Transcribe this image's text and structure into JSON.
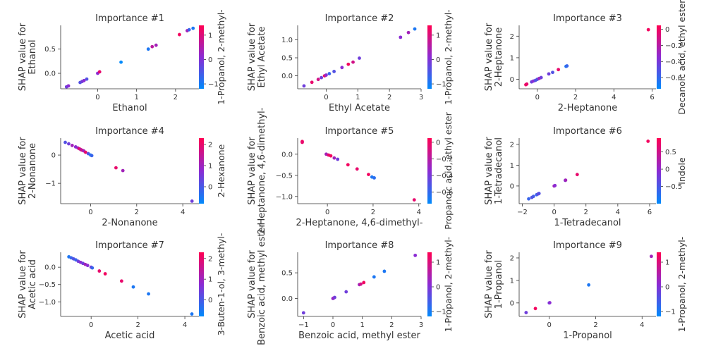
{
  "figure": {
    "cmap_low": "#008afb",
    "cmap_mid": "#8b2bd3",
    "cmap_high": "#ff0052",
    "axis_color": "#333333"
  },
  "chart_data": [
    {
      "type": "scatter",
      "title": "Importance #1",
      "xlabel": "Ethanol",
      "ylabel": [
        "SHAP value for",
        "Ethanol"
      ],
      "xlim": [
        -0.95,
        2.6
      ],
      "ylim": [
        -0.32,
        0.99
      ],
      "xticks": [
        0,
        1,
        2
      ],
      "yticks": [
        0.0,
        0.5
      ],
      "ytick_labels": [
        "0.0",
        "0.5"
      ],
      "colorbar": {
        "label": "1-Propanol, 2-methyl-",
        "ticks": [
          -1,
          0,
          1
        ],
        "range": [
          -1.2,
          1.4
        ]
      },
      "points": [
        {
          "x": -0.8,
          "y": -0.28,
          "c": 0.4
        },
        {
          "x": -0.75,
          "y": -0.26,
          "c": 0.5
        },
        {
          "x": -0.45,
          "y": -0.19,
          "c": 0.3
        },
        {
          "x": -0.4,
          "y": -0.17,
          "c": 0.4
        },
        {
          "x": -0.35,
          "y": -0.15,
          "c": 0.5
        },
        {
          "x": -0.28,
          "y": -0.12,
          "c": 0.3
        },
        {
          "x": 0.0,
          "y": 0.0,
          "c": 0.5
        },
        {
          "x": 0.05,
          "y": 0.03,
          "c": 0.9
        },
        {
          "x": 0.6,
          "y": 0.23,
          "c": 0.0
        },
        {
          "x": 1.3,
          "y": 0.5,
          "c": 0.1
        },
        {
          "x": 1.4,
          "y": 0.55,
          "c": 0.7
        },
        {
          "x": 1.5,
          "y": 0.58,
          "c": 0.6
        },
        {
          "x": 2.1,
          "y": 0.8,
          "c": 0.95
        },
        {
          "x": 2.3,
          "y": 0.88,
          "c": 0.6
        },
        {
          "x": 2.35,
          "y": 0.9,
          "c": 0.2
        },
        {
          "x": 2.45,
          "y": 0.93,
          "c": 0.1
        }
      ]
    },
    {
      "type": "scatter",
      "title": "Importance #2",
      "xlabel": "Ethyl Acetate",
      "ylabel": [
        "SHAP value for",
        "Ethyl Acetate"
      ],
      "xlim": [
        -0.9,
        3.0
      ],
      "ylim": [
        -0.36,
        1.4
      ],
      "xticks": [
        0,
        1,
        2,
        3
      ],
      "yticks": [
        0.0,
        0.5,
        1.0
      ],
      "ytick_labels": [
        "0.0",
        "0.5",
        "1.0"
      ],
      "colorbar": {
        "label": "1-Propanol, 2-methyl-",
        "ticks": [
          -1,
          0,
          1
        ],
        "range": [
          -1.2,
          1.4
        ]
      },
      "points": [
        {
          "x": -0.7,
          "y": -0.28,
          "c": 0.4
        },
        {
          "x": -0.45,
          "y": -0.18,
          "c": 0.9
        },
        {
          "x": -0.25,
          "y": -0.1,
          "c": 0.8
        },
        {
          "x": -0.15,
          "y": -0.05,
          "c": 0.4
        },
        {
          "x": -0.05,
          "y": 0.0,
          "c": 0.9
        },
        {
          "x": 0.0,
          "y": 0.02,
          "c": 0.5
        },
        {
          "x": 0.1,
          "y": 0.06,
          "c": 0.2
        },
        {
          "x": 0.25,
          "y": 0.12,
          "c": 0.3
        },
        {
          "x": 0.5,
          "y": 0.23,
          "c": 0.5
        },
        {
          "x": 0.7,
          "y": 0.32,
          "c": 0.95
        },
        {
          "x": 0.85,
          "y": 0.38,
          "c": 0.8
        },
        {
          "x": 1.05,
          "y": 0.49,
          "c": 0.4
        },
        {
          "x": 2.35,
          "y": 1.07,
          "c": 0.5
        },
        {
          "x": 2.6,
          "y": 1.2,
          "c": 0.6
        },
        {
          "x": 2.8,
          "y": 1.3,
          "c": 0.1
        }
      ]
    },
    {
      "type": "scatter",
      "title": "Importance #3",
      "xlabel": "2-Heptanone",
      "ylabel": [
        "SHAP value for",
        "2-Heptanone"
      ],
      "xlim": [
        -0.95,
        6.2
      ],
      "ylim": [
        -0.44,
        2.5
      ],
      "xticks": [
        0,
        2,
        4,
        6
      ],
      "yticks": [
        0,
        1,
        2
      ],
      "ytick_labels": [
        "0",
        "1",
        "2"
      ],
      "colorbar": {
        "label": "Decanoic acid, ethyl ester",
        "ticks": [
          -0.6,
          -0.4,
          -0.2,
          0.0
        ],
        "range": [
          -0.74,
          0.05
        ]
      },
      "points": [
        {
          "x": -0.6,
          "y": -0.25,
          "c": 0.95
        },
        {
          "x": -0.55,
          "y": -0.22,
          "c": 0.9
        },
        {
          "x": -0.3,
          "y": -0.12,
          "c": 0.4
        },
        {
          "x": -0.2,
          "y": -0.08,
          "c": 0.5
        },
        {
          "x": -0.1,
          "y": -0.05,
          "c": 0.3
        },
        {
          "x": 0.0,
          "y": 0.0,
          "c": 0.3
        },
        {
          "x": 0.1,
          "y": 0.04,
          "c": 0.6
        },
        {
          "x": 0.2,
          "y": 0.08,
          "c": 0.4
        },
        {
          "x": 0.6,
          "y": 0.25,
          "c": 0.4
        },
        {
          "x": 0.8,
          "y": 0.32,
          "c": 0.3
        },
        {
          "x": 1.1,
          "y": 0.45,
          "c": 0.9
        },
        {
          "x": 1.5,
          "y": 0.6,
          "c": 0.1
        },
        {
          "x": 1.55,
          "y": 0.62,
          "c": 0.2
        },
        {
          "x": 5.8,
          "y": 2.3,
          "c": 0.95
        }
      ]
    },
    {
      "type": "scatter",
      "title": "Importance #4",
      "xlabel": "2-Nonanone",
      "ylabel": [
        "SHAP value for",
        "2-Nonanone"
      ],
      "xlim": [
        -1.3,
        4.7
      ],
      "ylim": [
        -1.72,
        0.6
      ],
      "xticks": [
        0,
        2,
        4
      ],
      "yticks": [
        0,
        -1
      ],
      "ytick_labels": [
        "0",
        "−1"
      ],
      "colorbar": {
        "label": "2-Hexanone",
        "ticks": [
          0,
          1,
          2
        ],
        "range": [
          -0.8,
          2.3
        ]
      },
      "points": [
        {
          "x": -1.1,
          "y": 0.45,
          "c": 0.3
        },
        {
          "x": -0.95,
          "y": 0.4,
          "c": 0.4
        },
        {
          "x": -0.8,
          "y": 0.34,
          "c": 0.6
        },
        {
          "x": -0.65,
          "y": 0.29,
          "c": 0.5
        },
        {
          "x": -0.55,
          "y": 0.25,
          "c": 0.6
        },
        {
          "x": -0.48,
          "y": 0.22,
          "c": 0.9
        },
        {
          "x": -0.42,
          "y": 0.19,
          "c": 0.7
        },
        {
          "x": -0.36,
          "y": 0.17,
          "c": 0.8
        },
        {
          "x": -0.3,
          "y": 0.15,
          "c": 0.6
        },
        {
          "x": -0.22,
          "y": 0.1,
          "c": 0.9
        },
        {
          "x": -0.1,
          "y": 0.05,
          "c": 0.3
        },
        {
          "x": 0.0,
          "y": 0.0,
          "c": 0.1
        },
        {
          "x": 0.05,
          "y": -0.02,
          "c": 0.2
        },
        {
          "x": 1.1,
          "y": -0.45,
          "c": 0.9
        },
        {
          "x": 1.4,
          "y": -0.55,
          "c": 0.6
        },
        {
          "x": 4.4,
          "y": -1.63,
          "c": 0.4
        }
      ]
    },
    {
      "type": "scatter",
      "title": "Importance #5",
      "xlabel": "2-Heptanone, 4,6-dimethyl-",
      "ylabel": [
        "SHAP value for",
        "2-Heptanone, 4,6-dimethyl-"
      ],
      "xlim": [
        -1.3,
        4.1
      ],
      "ylim": [
        -1.17,
        0.38
      ],
      "xticks": [
        0,
        2,
        4
      ],
      "yticks": [
        0.0,
        -0.5,
        -1.0
      ],
      "ytick_labels": [
        "0.0",
        "−0.5",
        "−1.0"
      ],
      "colorbar": {
        "label": "Propanoic acid, ethyl ester",
        "ticks": [
          -0.6,
          -0.4,
          -0.2,
          0.0
        ],
        "range": [
          -0.74,
          0.05
        ]
      },
      "points": [
        {
          "x": -1.1,
          "y": 0.3,
          "c": 0.95
        },
        {
          "x": -1.1,
          "y": 0.28,
          "c": 0.9
        },
        {
          "x": -0.05,
          "y": 0.0,
          "c": 0.6
        },
        {
          "x": 0.05,
          "y": -0.02,
          "c": 0.9
        },
        {
          "x": 0.15,
          "y": -0.04,
          "c": 0.95
        },
        {
          "x": 0.3,
          "y": -0.09,
          "c": 0.6
        },
        {
          "x": 0.45,
          "y": -0.12,
          "c": 0.4
        },
        {
          "x": 0.9,
          "y": -0.25,
          "c": 0.95
        },
        {
          "x": 1.3,
          "y": -0.35,
          "c": 0.9
        },
        {
          "x": 1.8,
          "y": -0.48,
          "c": 0.95
        },
        {
          "x": 1.95,
          "y": -0.54,
          "c": 0.1
        },
        {
          "x": 2.05,
          "y": -0.56,
          "c": 0.15
        },
        {
          "x": 3.8,
          "y": -1.08,
          "c": 0.9
        }
      ]
    },
    {
      "type": "scatter",
      "title": "Importance #6",
      "xlabel": "1-Tetradecanol",
      "ylabel": [
        "SHAP value for",
        "1-Tetradecanol"
      ],
      "xlim": [
        -2.2,
        6.4
      ],
      "ylim": [
        -0.85,
        2.3
      ],
      "xticks": [
        -2,
        0,
        2,
        4,
        6
      ],
      "yticks": [
        0,
        1,
        2
      ],
      "ytick_labels": [
        "0",
        "1",
        "2"
      ],
      "colorbar": {
        "label": "Indole",
        "ticks": [
          -0.5,
          0.0,
          0.5
        ],
        "range": [
          -1.0,
          0.9
        ]
      },
      "points": [
        {
          "x": -1.6,
          "y": -0.62,
          "c": 0.2
        },
        {
          "x": -1.4,
          "y": -0.55,
          "c": 0.3
        },
        {
          "x": -1.3,
          "y": -0.5,
          "c": 0.25
        },
        {
          "x": -1.1,
          "y": -0.42,
          "c": 0.2
        },
        {
          "x": -1.0,
          "y": -0.38,
          "c": 0.4
        },
        {
          "x": -0.95,
          "y": -0.36,
          "c": 0.3
        },
        {
          "x": 0.0,
          "y": 0.0,
          "c": 0.6
        },
        {
          "x": 0.05,
          "y": 0.02,
          "c": 0.5
        },
        {
          "x": 0.7,
          "y": 0.27,
          "c": 0.4
        },
        {
          "x": 0.72,
          "y": 0.28,
          "c": 0.6
        },
        {
          "x": 1.45,
          "y": 0.55,
          "c": 0.9
        },
        {
          "x": 5.9,
          "y": 2.15,
          "c": 0.95
        }
      ]
    },
    {
      "type": "scatter",
      "title": "Importance #7",
      "xlabel": "Acetic acid",
      "ylabel": [
        "SHAP value for",
        "Acetic acid"
      ],
      "xlim": [
        -1.3,
        4.6
      ],
      "ylim": [
        -1.42,
        0.43
      ],
      "xticks": [
        0,
        2,
        4
      ],
      "yticks": [
        0.0,
        -0.5,
        -1.0
      ],
      "ytick_labels": [
        "0.0",
        "−0.5",
        "−1.0"
      ],
      "colorbar": {
        "label": "3-Buten-1-ol, 3-methyl-",
        "ticks": [
          0,
          1,
          2
        ],
        "range": [
          -0.8,
          2.3
        ]
      },
      "points": [
        {
          "x": -0.95,
          "y": 0.3,
          "c": 0.1
        },
        {
          "x": -0.85,
          "y": 0.27,
          "c": 0.2
        },
        {
          "x": -0.75,
          "y": 0.24,
          "c": 0.3
        },
        {
          "x": -0.65,
          "y": 0.21,
          "c": 0.2
        },
        {
          "x": -0.55,
          "y": 0.17,
          "c": 0.4
        },
        {
          "x": -0.45,
          "y": 0.14,
          "c": 0.5
        },
        {
          "x": -0.35,
          "y": 0.11,
          "c": 0.4
        },
        {
          "x": -0.25,
          "y": 0.08,
          "c": 0.6
        },
        {
          "x": -0.15,
          "y": 0.05,
          "c": 0.5
        },
        {
          "x": 0.0,
          "y": 0.0,
          "c": 0.4
        },
        {
          "x": 0.05,
          "y": -0.02,
          "c": 0.2
        },
        {
          "x": 0.35,
          "y": -0.11,
          "c": 0.9
        },
        {
          "x": 0.6,
          "y": -0.19,
          "c": 0.95
        },
        {
          "x": 1.3,
          "y": -0.4,
          "c": 0.9
        },
        {
          "x": 1.8,
          "y": -0.57,
          "c": 0.1
        },
        {
          "x": 2.45,
          "y": -0.77,
          "c": 0.1
        },
        {
          "x": 4.3,
          "y": -1.35,
          "c": 0.1
        }
      ]
    },
    {
      "type": "scatter",
      "title": "Importance #8",
      "xlabel": "Benzoic acid, methyl ester",
      "ylabel": [
        "SHAP value for",
        "Benzoic acid, methyl ester"
      ],
      "xlim": [
        -1.2,
        3.0
      ],
      "ylim": [
        -0.35,
        0.9
      ],
      "xticks": [
        -1,
        0,
        1,
        2,
        3
      ],
      "yticks": [
        0.0,
        0.5
      ],
      "ytick_labels": [
        "0.0",
        "0.5"
      ],
      "colorbar": {
        "label": "1-Propanol, 2-methyl-",
        "ticks": [
          -1,
          0,
          1
        ],
        "range": [
          -1.2,
          1.4
        ]
      },
      "points": [
        {
          "x": -1.0,
          "y": -0.28,
          "c": 0.4
        },
        {
          "x": 0.0,
          "y": 0.0,
          "c": 0.5
        },
        {
          "x": 0.03,
          "y": 0.01,
          "c": 0.6
        },
        {
          "x": 0.06,
          "y": 0.02,
          "c": 0.4
        },
        {
          "x": 0.45,
          "y": 0.13,
          "c": 0.4
        },
        {
          "x": 0.9,
          "y": 0.27,
          "c": 0.6
        },
        {
          "x": 0.95,
          "y": 0.28,
          "c": 0.8
        },
        {
          "x": 1.05,
          "y": 0.31,
          "c": 0.95
        },
        {
          "x": 1.4,
          "y": 0.42,
          "c": 0.1
        },
        {
          "x": 1.75,
          "y": 0.53,
          "c": 0.1
        },
        {
          "x": 2.8,
          "y": 0.84,
          "c": 0.5
        }
      ]
    },
    {
      "type": "scatter",
      "title": "Importance #9",
      "xlabel": "1-Propanol",
      "ylabel": [
        "SHAP value for",
        "1-Propanol"
      ],
      "xlim": [
        -1.3,
        4.6
      ],
      "ylim": [
        -0.6,
        2.25
      ],
      "xticks": [
        0,
        2,
        4
      ],
      "yticks": [
        0,
        1,
        2
      ],
      "ytick_labels": [
        "0",
        "1",
        "2"
      ],
      "colorbar": {
        "label": "1-Propanol, 2-methyl-",
        "ticks": [
          -1,
          0,
          1
        ],
        "range": [
          -1.2,
          1.4
        ]
      },
      "points": [
        {
          "x": -1.0,
          "y": -0.43,
          "c": 0.4
        },
        {
          "x": -0.6,
          "y": -0.25,
          "c": 0.95
        },
        {
          "x": 0.0,
          "y": 0.0,
          "c": 0.4
        },
        {
          "x": 0.02,
          "y": 0.01,
          "c": 0.5
        },
        {
          "x": 1.7,
          "y": 0.8,
          "c": 0.1
        },
        {
          "x": 4.4,
          "y": 2.07,
          "c": 0.6
        }
      ]
    }
  ]
}
